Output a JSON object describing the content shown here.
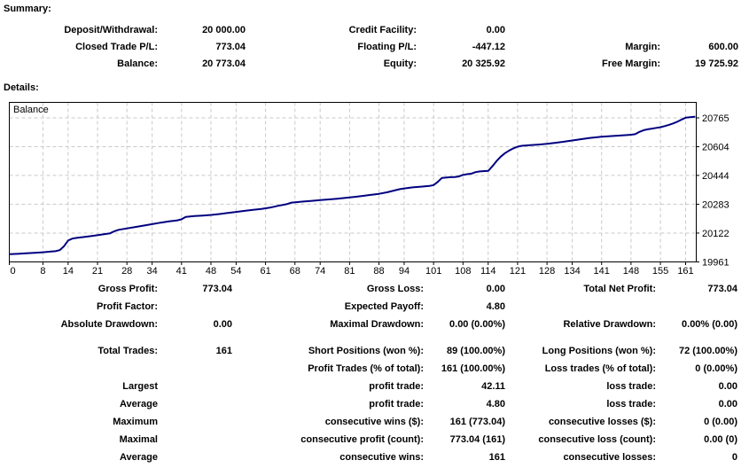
{
  "summary": {
    "heading": "Summary:",
    "rows": [
      [
        "Deposit/Withdrawal:",
        "20 000.00",
        "Credit Facility:",
        "0.00",
        "",
        ""
      ],
      [
        "Closed Trade P/L:",
        "773.04",
        "Floating P/L:",
        "-447.12",
        "Margin:",
        "600.00"
      ],
      [
        "Balance:",
        "20 773.04",
        "Equity:",
        "20 325.92",
        "Free Margin:",
        "19 725.92"
      ]
    ]
  },
  "details": {
    "heading": "Details:",
    "groups": [
      [
        [
          "Gross Profit:",
          "773.04",
          "Gross Loss:",
          "0.00",
          "Total Net Profit:",
          "773.04"
        ],
        [
          "Profit Factor:",
          "",
          "Expected Payoff:",
          "4.80",
          "",
          ""
        ],
        [
          "Absolute Drawdown:",
          "0.00",
          "Maximal Drawdown:",
          "0.00 (0.00%)",
          "Relative Drawdown:",
          "0.00% (0.00)"
        ]
      ],
      [
        [
          "Total Trades:",
          "161",
          "Short Positions (won %):",
          "89 (100.00%)",
          "Long Positions (won %):",
          "72 (100.00%)"
        ],
        [
          "",
          "",
          "Profit Trades (% of total):",
          "161 (100.00%)",
          "Loss trades (% of total):",
          "0 (0.00%)"
        ],
        [
          "Largest",
          "",
          "profit trade:",
          "42.11",
          "loss trade:",
          "0.00"
        ],
        [
          "Average",
          "",
          "profit trade:",
          "4.80",
          "loss trade:",
          "0.00"
        ],
        [
          "Maximum",
          "",
          "consecutive wins ($):",
          "161 (773.04)",
          "consecutive losses ($):",
          "0 (0.00)"
        ],
        [
          "Maximal",
          "",
          "consecutive profit (count):",
          "773.04 (161)",
          "consecutive loss (count):",
          "0.00 (0)"
        ],
        [
          "Average",
          "",
          "consecutive wins:",
          "161",
          "consecutive losses:",
          "0"
        ]
      ]
    ]
  },
  "chart_data": {
    "type": "line",
    "title": "Balance",
    "x_ticks": [
      0,
      8,
      14,
      21,
      28,
      34,
      41,
      48,
      54,
      61,
      68,
      74,
      81,
      88,
      94,
      101,
      108,
      114,
      121,
      128,
      134,
      141,
      148,
      155,
      161
    ],
    "y_ticks": [
      19961,
      20122,
      20283,
      20444,
      20604,
      20765
    ],
    "xlim": [
      0,
      163.5
    ],
    "ylim": [
      19961,
      20853
    ],
    "grid": "dashed",
    "legend_position": "top-left-inside",
    "line_color": "#000080",
    "grid_color": "#c9c9c9",
    "border_color": "#000000",
    "series": [
      {
        "name": "Balance",
        "points": [
          [
            0,
            20004
          ],
          [
            2,
            20006
          ],
          [
            4,
            20009
          ],
          [
            6,
            20012
          ],
          [
            8,
            20015
          ],
          [
            10,
            20019
          ],
          [
            11,
            20021
          ],
          [
            12,
            20027
          ],
          [
            13,
            20048
          ],
          [
            14,
            20080
          ],
          [
            15,
            20091
          ],
          [
            16,
            20095
          ],
          [
            18,
            20101
          ],
          [
            20,
            20107
          ],
          [
            22,
            20114
          ],
          [
            24,
            20121
          ],
          [
            25,
            20132
          ],
          [
            26,
            20140
          ],
          [
            28,
            20148
          ],
          [
            30,
            20156
          ],
          [
            32,
            20164
          ],
          [
            34,
            20172
          ],
          [
            36,
            20180
          ],
          [
            38,
            20187
          ],
          [
            40,
            20193
          ],
          [
            41,
            20199
          ],
          [
            42,
            20212
          ],
          [
            44,
            20217
          ],
          [
            46,
            20220
          ],
          [
            48,
            20223
          ],
          [
            50,
            20228
          ],
          [
            52,
            20234
          ],
          [
            54,
            20240
          ],
          [
            56,
            20246
          ],
          [
            58,
            20252
          ],
          [
            60,
            20257
          ],
          [
            62,
            20264
          ],
          [
            64,
            20274
          ],
          [
            66,
            20283
          ],
          [
            67,
            20291
          ],
          [
            68,
            20294
          ],
          [
            70,
            20298
          ],
          [
            72,
            20302
          ],
          [
            74,
            20306
          ],
          [
            76,
            20310
          ],
          [
            78,
            20314
          ],
          [
            80,
            20318
          ],
          [
            82,
            20323
          ],
          [
            84,
            20329
          ],
          [
            86,
            20335
          ],
          [
            88,
            20341
          ],
          [
            90,
            20350
          ],
          [
            92,
            20362
          ],
          [
            93,
            20367
          ],
          [
            94,
            20371
          ],
          [
            96,
            20377
          ],
          [
            98,
            20381
          ],
          [
            100,
            20385
          ],
          [
            101,
            20390
          ],
          [
            102,
            20408
          ],
          [
            103,
            20430
          ],
          [
            105,
            20434
          ],
          [
            106,
            20435
          ],
          [
            107,
            20438
          ],
          [
            108,
            20447
          ],
          [
            109,
            20451
          ],
          [
            110,
            20454
          ],
          [
            111,
            20462
          ],
          [
            112,
            20466
          ],
          [
            114,
            20469
          ],
          [
            115,
            20495
          ],
          [
            116,
            20524
          ],
          [
            117,
            20549
          ],
          [
            118,
            20568
          ],
          [
            119,
            20583
          ],
          [
            120,
            20595
          ],
          [
            121,
            20604
          ],
          [
            122,
            20609
          ],
          [
            124,
            20613
          ],
          [
            126,
            20616
          ],
          [
            128,
            20620
          ],
          [
            130,
            20626
          ],
          [
            132,
            20632
          ],
          [
            134,
            20639
          ],
          [
            136,
            20646
          ],
          [
            138,
            20652
          ],
          [
            140,
            20657
          ],
          [
            141,
            20660
          ],
          [
            143,
            20663
          ],
          [
            145,
            20666
          ],
          [
            147,
            20669
          ],
          [
            148,
            20671
          ],
          [
            149,
            20674
          ],
          [
            150,
            20687
          ],
          [
            151,
            20696
          ],
          [
            152,
            20701
          ],
          [
            154,
            20709
          ],
          [
            155,
            20713
          ],
          [
            156,
            20719
          ],
          [
            157,
            20726
          ],
          [
            158,
            20734
          ],
          [
            159,
            20743
          ],
          [
            160,
            20755
          ],
          [
            161,
            20766
          ],
          [
            163.3,
            20772
          ]
        ]
      }
    ]
  }
}
